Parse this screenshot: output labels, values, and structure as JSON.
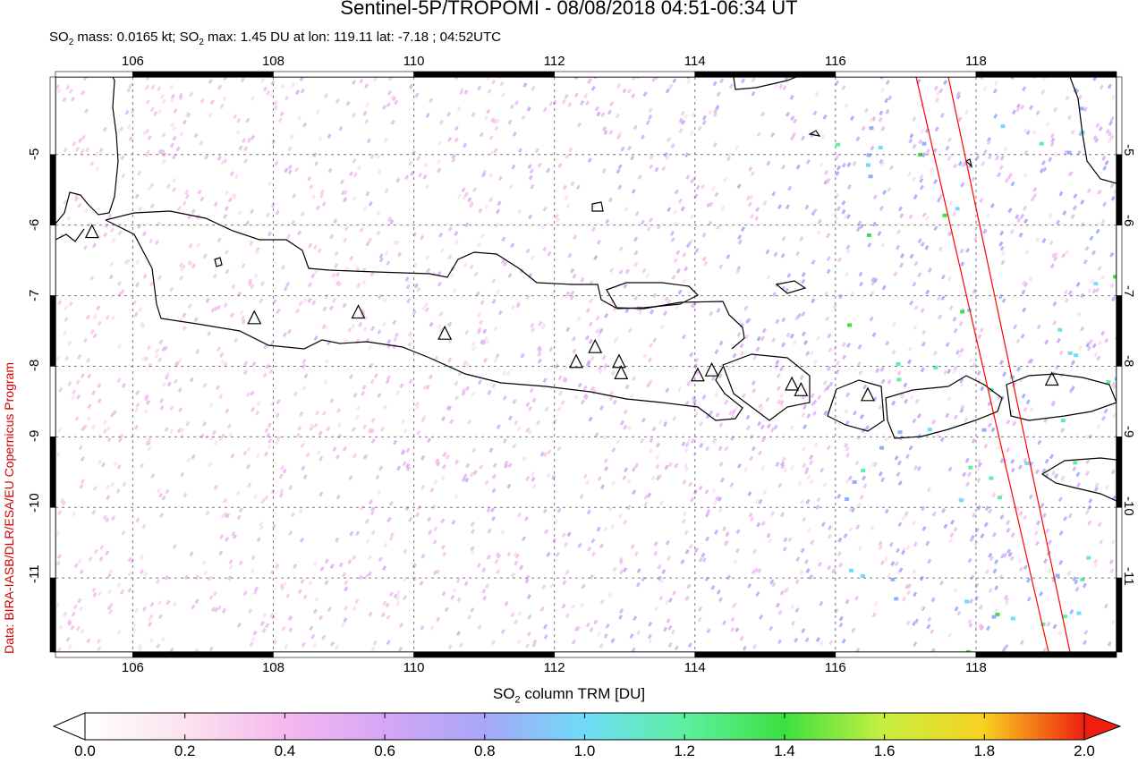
{
  "title": "Sentinel-5P/TROPOMI - 08/08/2018 04:51-06:34 UT",
  "subtitle": {
    "prefix": "SO",
    "sub1": "2",
    "mass": " mass: 0.0165 kt; SO",
    "sub2": "2",
    "rest": " max: 1.45 DU at lon: 119.11 lat: -7.18 ; 04:52UTC"
  },
  "credit": "Data: BIRA-IASB/DLR/ESA/EU Copernicus Program",
  "map": {
    "lon_range": [
      104.9,
      120.0
    ],
    "lat_range": [
      -12.05,
      -3.9
    ],
    "lon_ticks": [
      "106",
      "108",
      "110",
      "112",
      "114",
      "116",
      "118"
    ],
    "lat_ticks": [
      "-5",
      "-6",
      "-7",
      "-8",
      "-9",
      "-10",
      "-11"
    ],
    "volcano_count_label": "",
    "colors": {
      "coast": "#000000",
      "swath_edge": "#ff0000",
      "grid": "#666666"
    }
  },
  "colorbar": {
    "label_main": "SO",
    "label_sub": "2",
    "label_rest": " column TRM [DU]",
    "ticks": [
      "0.0",
      "0.2",
      "0.4",
      "0.6",
      "0.8",
      "1.0",
      "1.2",
      "1.4",
      "1.6",
      "1.8",
      "2.0"
    ],
    "range": [
      0.0,
      2.0
    ]
  }
}
